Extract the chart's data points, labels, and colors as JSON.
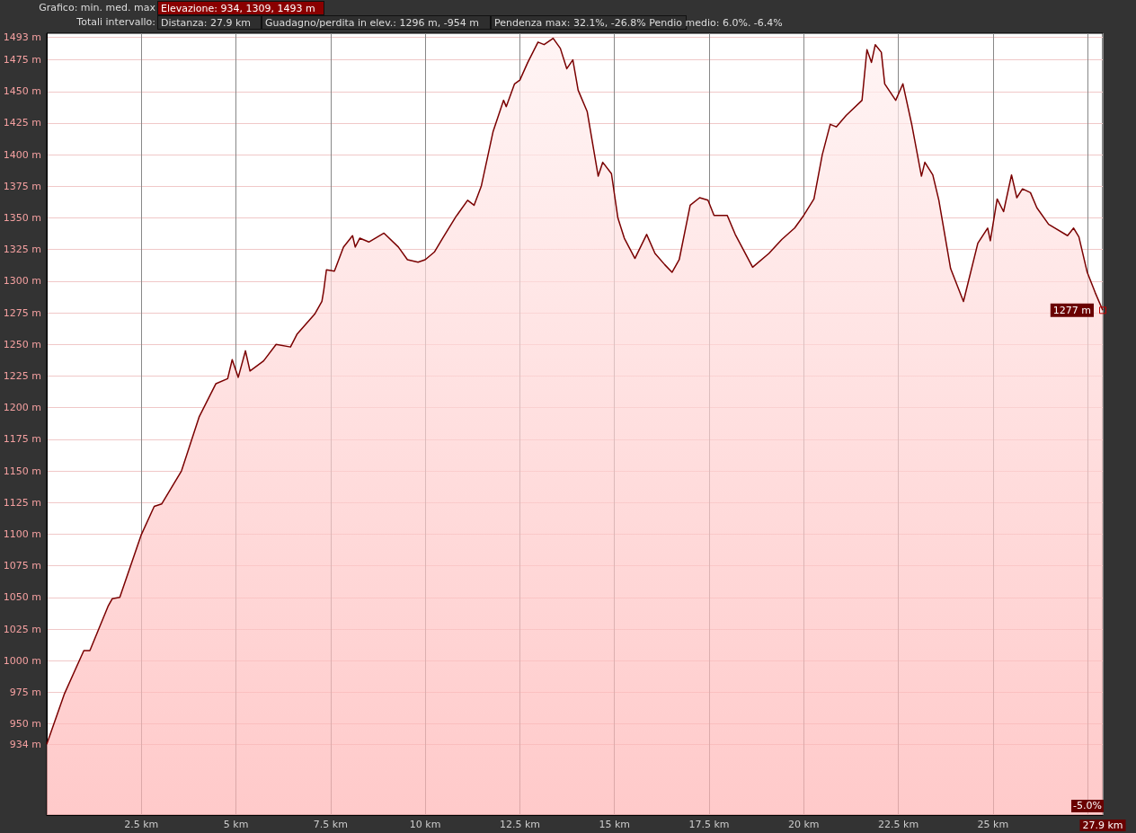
{
  "chart_data": {
    "type": "area",
    "annotations": [
      "Grafico: min. med. max",
      "Elevazione: 934, 1309, 1493 m",
      "Totali intervallo:",
      "Distanza: 27.9 km",
      "Guadagno/perdita in elev.: 1296 m, -954 m",
      "Pendenza max: 32.1%, -26.8% Pendio medio: 6.0%. -6.4%",
      "-5.0%",
      {
        "text": "1277 m",
        "x": 27.9,
        "y": 1277
      }
    ],
    "x": [
      0,
      0.47,
      0.98,
      1.14,
      1.62,
      1.73,
      1.93,
      2.49,
      2.84,
      3.04,
      3.56,
      4.03,
      4.47,
      4.78,
      4.9,
      5.06,
      5.25,
      5.37,
      5.73,
      6.06,
      6.44,
      6.61,
      7.08,
      7.27,
      7.32,
      7.39,
      7.6,
      7.84,
      8.08,
      8.15,
      8.27,
      8.51,
      8.91,
      9.29,
      9.53,
      9.81,
      10.0,
      10.24,
      10.46,
      10.81,
      11.12,
      11.29,
      11.48,
      11.79,
      12.07,
      12.14,
      12.36,
      12.5,
      12.71,
      12.98,
      13.14,
      13.38,
      13.57,
      13.74,
      13.9,
      14.04,
      14.28,
      14.57,
      14.69,
      14.92,
      15.09,
      15.26,
      15.54,
      15.85,
      16.07,
      16.33,
      16.52,
      16.71,
      17.0,
      17.25,
      17.47,
      17.63,
      17.98,
      18.19,
      18.65,
      19.08,
      19.42,
      19.76,
      20.0,
      20.27,
      20.49,
      20.7,
      20.86,
      21.12,
      21.54,
      21.67,
      21.79,
      21.89,
      22.05,
      22.14,
      22.43,
      22.62,
      22.86,
      23.11,
      23.2,
      23.41,
      23.57,
      23.88,
      24.22,
      24.6,
      24.86,
      24.93,
      25.11,
      25.28,
      25.49,
      25.63,
      25.78,
      25.99,
      26.16,
      26.47,
      26.97,
      27.13,
      27.27,
      27.49,
      27.7,
      27.9
    ],
    "series": [
      {
        "color": "#7a0000",
        "values": [
          934,
          974,
          1008,
          1008,
          1043,
          1049,
          1050,
          1099,
          1122,
          1124,
          1150,
          1193,
          1219,
          1223,
          1238,
          1224,
          1245,
          1229,
          1237,
          1250,
          1248,
          1258,
          1274,
          1284,
          1293,
          1309,
          1308,
          1327,
          1336,
          1327,
          1334,
          1331,
          1338,
          1327,
          1317,
          1315,
          1317,
          1323,
          1334,
          1351,
          1364,
          1360,
          1375,
          1418,
          1443,
          1438,
          1456,
          1459,
          1473,
          1489,
          1487,
          1492,
          1484,
          1468,
          1475,
          1451,
          1434,
          1383,
          1394,
          1385,
          1350,
          1334,
          1318,
          1337,
          1322,
          1313,
          1307,
          1317,
          1360,
          1366,
          1364,
          1352,
          1352,
          1337,
          1311,
          1322,
          1333,
          1342,
          1352,
          1365,
          1400,
          1424,
          1422,
          1431,
          1443,
          1483,
          1473,
          1487,
          1481,
          1456,
          1443,
          1456,
          1423,
          1383,
          1394,
          1384,
          1364,
          1310,
          1284,
          1330,
          1342,
          1332,
          1365,
          1355,
          1384,
          1366,
          1373,
          1370,
          1358,
          1345,
          1336,
          1342,
          1335,
          1307,
          1291,
          1277
        ]
      }
    ],
    "xlim": [
      0,
      27.9
    ],
    "xticks": [
      {
        "value": 2.5,
        "label": "2.5 km"
      },
      {
        "value": 5,
        "label": "5 km"
      },
      {
        "value": 7.5,
        "label": "7.5 km"
      },
      {
        "value": 10,
        "label": "10 km"
      },
      {
        "value": 12.5,
        "label": "12.5 km"
      },
      {
        "value": 15,
        "label": "15 km"
      },
      {
        "value": 17.5,
        "label": "17.5 km"
      },
      {
        "value": 20,
        "label": "20 km"
      },
      {
        "value": 22.5,
        "label": "22.5 km"
      },
      {
        "value": 25,
        "label": "25 km"
      },
      {
        "value": 27.5,
        "label": null
      },
      {
        "value": 27.9,
        "label": "27.9 km"
      }
    ],
    "ylim": [
      878,
      1496
    ],
    "yticks": [
      {
        "value": 934,
        "label": "934 m"
      },
      {
        "value": 950,
        "label": "950 m"
      },
      {
        "value": 975,
        "label": "975 m"
      },
      {
        "value": 1000,
        "label": "1000 m"
      },
      {
        "value": 1025,
        "label": "1025 m"
      },
      {
        "value": 1050,
        "label": "1050 m"
      },
      {
        "value": 1075,
        "label": "1075 m"
      },
      {
        "value": 1100,
        "label": "1100 m"
      },
      {
        "value": 1125,
        "label": "1125 m"
      },
      {
        "value": 1150,
        "label": "1150 m"
      },
      {
        "value": 1175,
        "label": "1175 m"
      },
      {
        "value": 1200,
        "label": "1200 m"
      },
      {
        "value": 1225,
        "label": "1225 m"
      },
      {
        "value": 1250,
        "label": "1250 m"
      },
      {
        "value": 1275,
        "label": "1275 m"
      },
      {
        "value": 1300,
        "label": "1300 m"
      },
      {
        "value": 1325,
        "label": "1325 m"
      },
      {
        "value": 1350,
        "label": "1350 m"
      },
      {
        "value": 1375,
        "label": "1375 m"
      },
      {
        "value": 1400,
        "label": "1400 m"
      },
      {
        "value": 1425,
        "label": "1425 m"
      },
      {
        "value": 1450,
        "label": "1450 m"
      },
      {
        "value": 1475,
        "label": "1475 m"
      },
      {
        "value": 1493,
        "label": "1493 m"
      }
    ],
    "grid": true,
    "marker": "none"
  }
}
